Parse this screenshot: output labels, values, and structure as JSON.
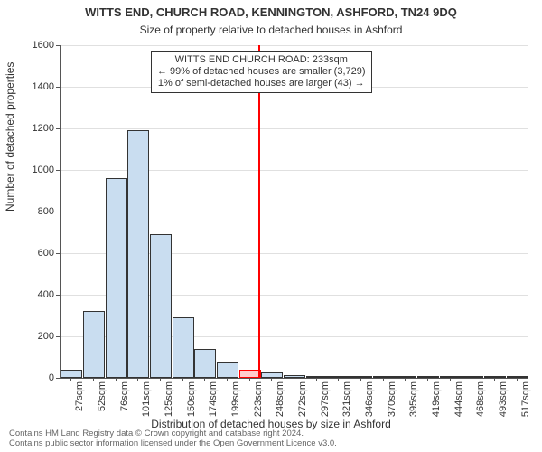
{
  "chart": {
    "type": "histogram",
    "title": "WITTS END, CHURCH ROAD, KENNINGTON, ASHFORD, TN24 9DQ",
    "title_fontsize": 13,
    "subtitle": "Size of property relative to detached houses in Ashford",
    "subtitle_fontsize": 12,
    "xlabel": "Distribution of detached houses by size in Ashford",
    "ylabel": "Number of detached properties",
    "label_fontsize": 12,
    "tick_fontsize": 11,
    "background_color": "#ffffff",
    "grid_color": "#e0e0e0",
    "axis_color": "#555555",
    "bar_fill": "#c9ddf0",
    "bar_border": "#333333",
    "highlight_fill": "#ffcccc",
    "highlight_border": "#ff0000",
    "marker_color": "#ff0000",
    "ylim": [
      0,
      1600
    ],
    "yticks": [
      0,
      200,
      400,
      600,
      800,
      1000,
      1200,
      1400,
      1600
    ],
    "xtick_labels": [
      "27sqm",
      "52sqm",
      "76sqm",
      "101sqm",
      "125sqm",
      "150sqm",
      "174sqm",
      "199sqm",
      "223sqm",
      "248sqm",
      "272sqm",
      "297sqm",
      "321sqm",
      "346sqm",
      "370sqm",
      "395sqm",
      "419sqm",
      "444sqm",
      "468sqm",
      "493sqm",
      "517sqm"
    ],
    "bars": [
      40,
      320,
      960,
      1190,
      690,
      290,
      140,
      80,
      40,
      25,
      15,
      10,
      10,
      5,
      10,
      5,
      3,
      3,
      3,
      2,
      2
    ],
    "highlight_index": 8,
    "marker_value_sqm": 233,
    "x_range_sqm": [
      15,
      530
    ],
    "annotation": {
      "line1": "WITTS END CHURCH ROAD: 233sqm",
      "line2": "← 99% of detached houses are smaller (3,729)",
      "line3": "1% of semi-detached houses are larger (43) →"
    },
    "footer": "Contains HM Land Registry data © Crown copyright and database right 2024.\nContains public sector information licensed under the Open Government Licence v3.0."
  }
}
